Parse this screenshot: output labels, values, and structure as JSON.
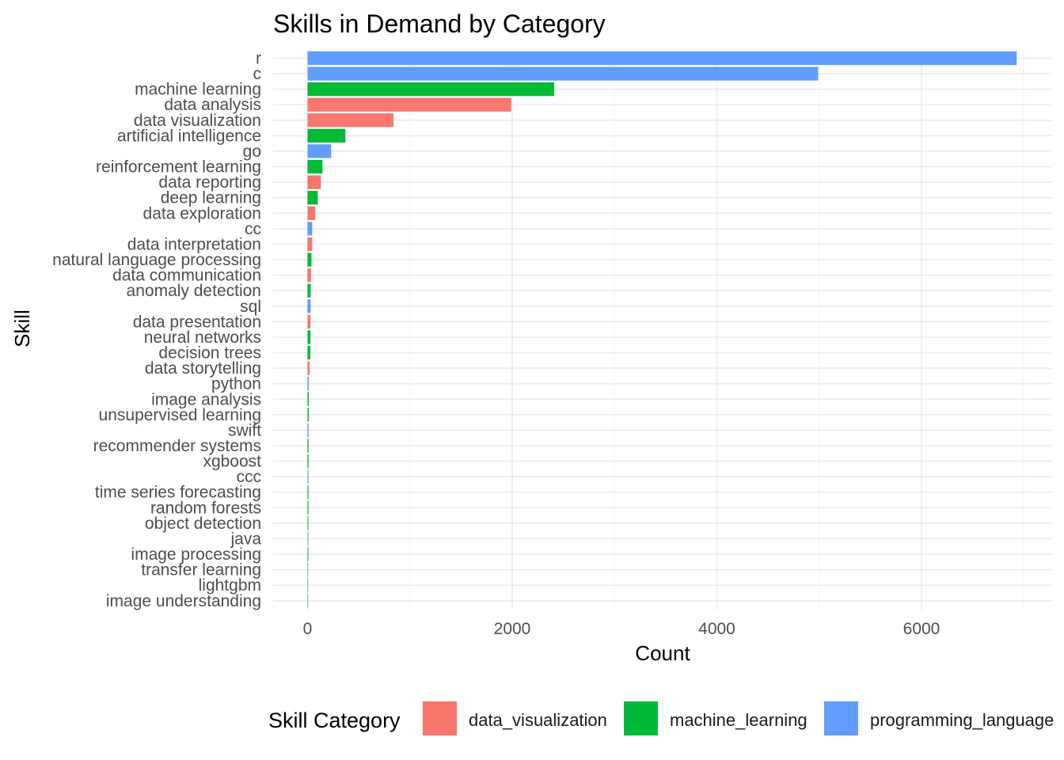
{
  "chart_data": {
    "type": "bar",
    "orientation": "horizontal",
    "title": "Skills in Demand by Category",
    "xlabel": "Count",
    "ylabel": "Skill",
    "xlim": [
      -400,
      7100
    ],
    "x_ticks": [
      0,
      2000,
      4000,
      6000
    ],
    "grid": true,
    "legend": {
      "title": "Skill Category",
      "position": "bottom",
      "entries": [
        {
          "name": "data_visualization",
          "color": "#F8766D"
        },
        {
          "name": "machine_learning",
          "color": "#00BA38"
        },
        {
          "name": "programming_language",
          "color": "#619CFF"
        }
      ]
    },
    "bars": [
      {
        "skill": "r",
        "value": 6930,
        "category": "programming_language"
      },
      {
        "skill": "c",
        "value": 4990,
        "category": "programming_language"
      },
      {
        "skill": "machine learning",
        "value": 2410,
        "category": "machine_learning"
      },
      {
        "skill": "data analysis",
        "value": 1990,
        "category": "data_visualization"
      },
      {
        "skill": "data visualization",
        "value": 840,
        "category": "data_visualization"
      },
      {
        "skill": "artificial intelligence",
        "value": 370,
        "category": "machine_learning"
      },
      {
        "skill": "go",
        "value": 230,
        "category": "programming_language"
      },
      {
        "skill": "reinforcement learning",
        "value": 145,
        "category": "machine_learning"
      },
      {
        "skill": "data reporting",
        "value": 130,
        "category": "data_visualization"
      },
      {
        "skill": "deep learning",
        "value": 100,
        "category": "machine_learning"
      },
      {
        "skill": "data exploration",
        "value": 75,
        "category": "data_visualization"
      },
      {
        "skill": "cc",
        "value": 45,
        "category": "programming_language"
      },
      {
        "skill": "data interpretation",
        "value": 45,
        "category": "data_visualization"
      },
      {
        "skill": "natural language processing",
        "value": 38,
        "category": "machine_learning"
      },
      {
        "skill": "data communication",
        "value": 33,
        "category": "data_visualization"
      },
      {
        "skill": "anomaly detection",
        "value": 30,
        "category": "machine_learning"
      },
      {
        "skill": "sql",
        "value": 30,
        "category": "programming_language"
      },
      {
        "skill": "data presentation",
        "value": 28,
        "category": "data_visualization"
      },
      {
        "skill": "neural networks",
        "value": 28,
        "category": "machine_learning"
      },
      {
        "skill": "decision trees",
        "value": 27,
        "category": "machine_learning"
      },
      {
        "skill": "data storytelling",
        "value": 20,
        "category": "data_visualization"
      },
      {
        "skill": "python",
        "value": 12,
        "category": "programming_language"
      },
      {
        "skill": "image analysis",
        "value": 12,
        "category": "machine_learning"
      },
      {
        "skill": "unsupervised learning",
        "value": 12,
        "category": "machine_learning"
      },
      {
        "skill": "swift",
        "value": 10,
        "category": "programming_language"
      },
      {
        "skill": "recommender systems",
        "value": 10,
        "category": "machine_learning"
      },
      {
        "skill": "xgboost",
        "value": 10,
        "category": "machine_learning"
      },
      {
        "skill": "ccc",
        "value": 9,
        "category": "programming_language"
      },
      {
        "skill": "time series forecasting",
        "value": 9,
        "category": "machine_learning"
      },
      {
        "skill": "random forests",
        "value": 9,
        "category": "machine_learning"
      },
      {
        "skill": "object detection",
        "value": 8,
        "category": "machine_learning"
      },
      {
        "skill": "java",
        "value": 8,
        "category": "programming_language"
      },
      {
        "skill": "image processing",
        "value": 8,
        "category": "machine_learning"
      },
      {
        "skill": "transfer learning",
        "value": 3,
        "category": "machine_learning"
      },
      {
        "skill": "lightgbm",
        "value": 2,
        "category": "machine_learning"
      },
      {
        "skill": "image understanding",
        "value": 2,
        "category": "machine_learning"
      }
    ]
  }
}
